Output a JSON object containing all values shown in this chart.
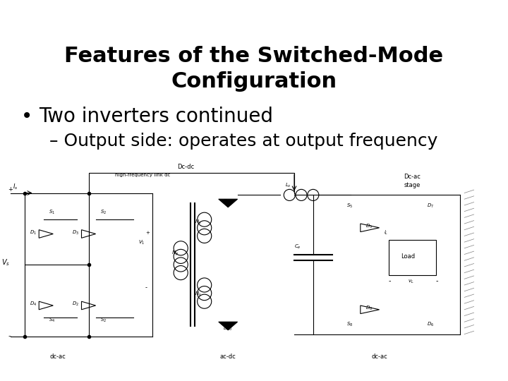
{
  "title_line1": "Features of the Switched-Mode",
  "title_line2": "Configuration",
  "bullet_text": "Two inverters continued",
  "sub_bullet_text": "Output side: operates at output frequency",
  "bg_color": "#ffffff",
  "title_color": "#000000",
  "bullet_color": "#000000",
  "title_fontsize": 22,
  "bullet_fontsize": 20,
  "sub_bullet_fontsize": 18,
  "fig_width": 7.2,
  "fig_height": 5.4,
  "dpi": 100
}
